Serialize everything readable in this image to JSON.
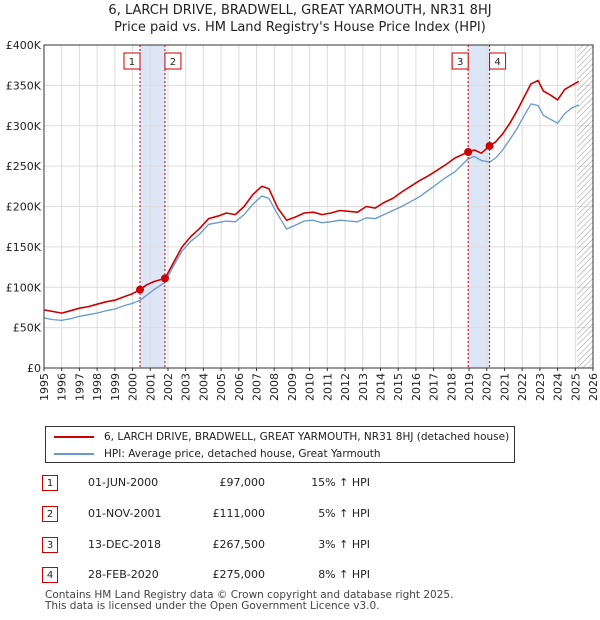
{
  "title": {
    "line1": "6, LARCH DRIVE, BRADWELL, GREAT YARMOUTH, NR31 8HJ",
    "line2": "Price paid vs. HM Land Registry's House Price Index (HPI)"
  },
  "colors": {
    "red": "#cc0000",
    "blue": "#6699cc",
    "shade": "#dde6f7",
    "grid": "#dddddd"
  },
  "legend": {
    "red_label": "6, LARCH DRIVE, BRADWELL, GREAT YARMOUTH, NR31 8HJ (detached house)",
    "blue_label": "HPI: Average price, detached house, Great Yarmouth"
  },
  "transactions": [
    {
      "id": "1",
      "date": "01-JUN-2000",
      "price": "£97,000",
      "hpi": "15% ↑ HPI"
    },
    {
      "id": "2",
      "date": "01-NOV-2001",
      "price": "£111,000",
      "hpi": "5% ↑ HPI"
    },
    {
      "id": "3",
      "date": "13-DEC-2018",
      "price": "£267,500",
      "hpi": "3% ↑ HPI"
    },
    {
      "id": "4",
      "date": "28-FEB-2020",
      "price": "£275,000",
      "hpi": "8% ↑ HPI"
    }
  ],
  "footer": {
    "line1": "Contains HM Land Registry data © Crown copyright and database right 2025.",
    "line2": "This data is licensed under the Open Government Licence v3.0."
  },
  "chart_data": {
    "type": "line",
    "title": "6, LARCH DRIVE, BRADWELL, GREAT YARMOUTH, NR31 8HJ — Price paid vs. HM Land Registry's House Price Index (HPI)",
    "xlabel": "",
    "ylabel": "",
    "xlim": [
      1995,
      2026
    ],
    "ylim": [
      0,
      400000
    ],
    "x_ticks": [
      1995,
      1996,
      1997,
      1998,
      1999,
      2000,
      2001,
      2002,
      2003,
      2004,
      2005,
      2006,
      2007,
      2008,
      2009,
      2010,
      2011,
      2012,
      2013,
      2014,
      2015,
      2016,
      2017,
      2018,
      2019,
      2020,
      2021,
      2022,
      2023,
      2024,
      2025,
      2026
    ],
    "y_ticks": [
      0,
      50000,
      100000,
      150000,
      200000,
      250000,
      300000,
      350000,
      400000
    ],
    "y_tick_labels": [
      "£0",
      "£50K",
      "£100K",
      "£150K",
      "£200K",
      "£250K",
      "£300K",
      "£350K",
      "£400K"
    ],
    "grid": true,
    "legend_position": "bottom",
    "shaded_periods": [
      [
        2000.42,
        2001.83
      ],
      [
        2018.95,
        2020.16
      ]
    ],
    "forecast_hatch_from": 2025.1,
    "markers": [
      {
        "label": "1",
        "x": 2000.42,
        "y": 97000
      },
      {
        "label": "2",
        "x": 2001.83,
        "y": 111000
      },
      {
        "label": "3",
        "x": 2018.95,
        "y": 267500
      },
      {
        "label": "4",
        "x": 2020.16,
        "y": 275000
      }
    ],
    "series": [
      {
        "name": "6, LARCH DRIVE, BRADWELL, GREAT YARMOUTH, NR31 8HJ (detached house)",
        "color": "#cc0000",
        "x": [
          1995.0,
          1995.5,
          1996.0,
          1996.5,
          1997.0,
          1997.5,
          1998.0,
          1998.5,
          1999.0,
          1999.5,
          2000.0,
          2000.42,
          2000.8,
          2001.2,
          2001.83,
          2002.3,
          2002.8,
          2003.3,
          2003.8,
          2004.3,
          2004.8,
          2005.3,
          2005.8,
          2006.3,
          2006.8,
          2007.3,
          2007.7,
          2008.2,
          2008.7,
          2009.2,
          2009.7,
          2010.2,
          2010.7,
          2011.2,
          2011.7,
          2012.2,
          2012.7,
          2013.2,
          2013.7,
          2014.2,
          2014.7,
          2015.2,
          2015.7,
          2016.2,
          2016.7,
          2017.2,
          2017.7,
          2018.2,
          2018.95,
          2019.3,
          2019.7,
          2020.16,
          2020.5,
          2020.9,
          2021.3,
          2021.7,
          2022.1,
          2022.5,
          2022.9,
          2023.2,
          2023.6,
          2024.0,
          2024.4,
          2024.8,
          2025.2
        ],
        "y": [
          72000,
          70000,
          68000,
          71000,
          74000,
          76000,
          79000,
          82000,
          84000,
          88000,
          92000,
          97000,
          103000,
          107000,
          111000,
          130000,
          150000,
          163000,
          173000,
          185000,
          188000,
          192000,
          190000,
          200000,
          215000,
          225000,
          222000,
          198000,
          183000,
          187000,
          192000,
          193000,
          190000,
          192000,
          195000,
          194000,
          193000,
          200000,
          198000,
          205000,
          210000,
          218000,
          225000,
          232000,
          238000,
          245000,
          252000,
          260000,
          267500,
          270000,
          266000,
          275000,
          280000,
          290000,
          303000,
          318000,
          335000,
          352000,
          356000,
          343000,
          338000,
          332000,
          345000,
          350000,
          355000
        ]
      },
      {
        "name": "HPI: Average price, detached house, Great Yarmouth",
        "color": "#6699cc",
        "x": [
          1995.0,
          1995.5,
          1996.0,
          1996.5,
          1997.0,
          1997.5,
          1998.0,
          1998.5,
          1999.0,
          1999.5,
          2000.0,
          2000.42,
          2000.8,
          2001.2,
          2001.83,
          2002.3,
          2002.8,
          2003.3,
          2003.8,
          2004.3,
          2004.8,
          2005.3,
          2005.8,
          2006.3,
          2006.8,
          2007.3,
          2007.7,
          2008.2,
          2008.7,
          2009.2,
          2009.7,
          2010.2,
          2010.7,
          2011.2,
          2011.7,
          2012.2,
          2012.7,
          2013.2,
          2013.7,
          2014.2,
          2014.7,
          2015.2,
          2015.7,
          2016.2,
          2016.7,
          2017.2,
          2017.7,
          2018.2,
          2018.95,
          2019.3,
          2019.7,
          2020.16,
          2020.5,
          2020.9,
          2021.3,
          2021.7,
          2022.1,
          2022.5,
          2022.9,
          2023.2,
          2023.6,
          2024.0,
          2024.4,
          2024.8,
          2025.2
        ],
        "y": [
          62000,
          60000,
          59000,
          61000,
          64000,
          66000,
          68000,
          71000,
          73000,
          77000,
          80000,
          84000,
          90000,
          97000,
          106000,
          126000,
          145000,
          157000,
          166000,
          178000,
          180000,
          182000,
          181000,
          190000,
          203000,
          213000,
          210000,
          190000,
          172000,
          177000,
          182000,
          183000,
          180000,
          181000,
          183000,
          182000,
          181000,
          186000,
          185000,
          190000,
          195000,
          200000,
          206000,
          212000,
          220000,
          228000,
          236000,
          243000,
          259000,
          262000,
          257000,
          255000,
          260000,
          270000,
          283000,
          296000,
          312000,
          327000,
          325000,
          313000,
          308000,
          303000,
          315000,
          322000,
          326000
        ]
      }
    ]
  }
}
